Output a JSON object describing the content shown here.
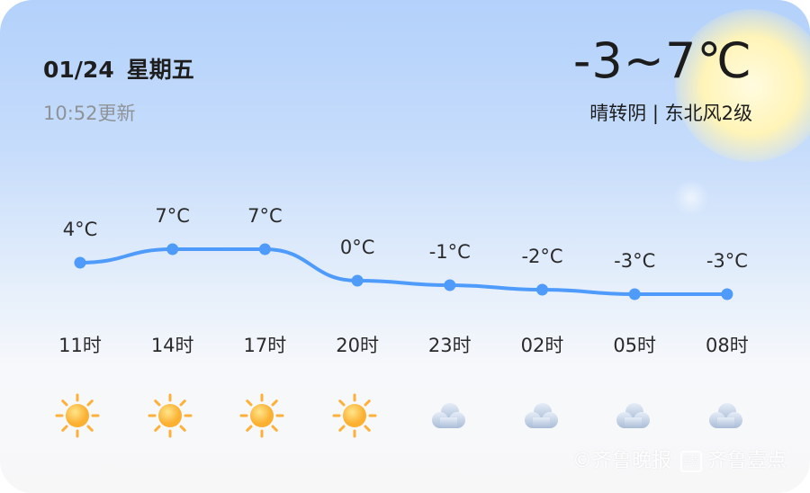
{
  "header": {
    "date": "01/24",
    "weekday": "星期五",
    "updated": "10:52更新",
    "temp_range": "-3~7℃",
    "condition": "晴转阴 | 东北风2级"
  },
  "chart_data": {
    "type": "line",
    "categories": [
      "11时",
      "14时",
      "17时",
      "20时",
      "23时",
      "02时",
      "05时",
      "08时"
    ],
    "values": [
      4,
      7,
      7,
      0,
      -1,
      -2,
      -3,
      -3
    ],
    "labels": [
      "4°C",
      "7°C",
      "7°C",
      "0°C",
      "-1°C",
      "-2°C",
      "-3°C",
      "-3°C"
    ],
    "color": "#4f9bfb"
  },
  "icons": [
    "sunny",
    "sunny",
    "sunny",
    "sunny",
    "cloudy",
    "cloudy",
    "cloudy",
    "cloudy"
  ],
  "watermark": {
    "brand1": "齐鲁晚报",
    "brand2": "齐鲁壹点",
    "box": "壹点"
  }
}
